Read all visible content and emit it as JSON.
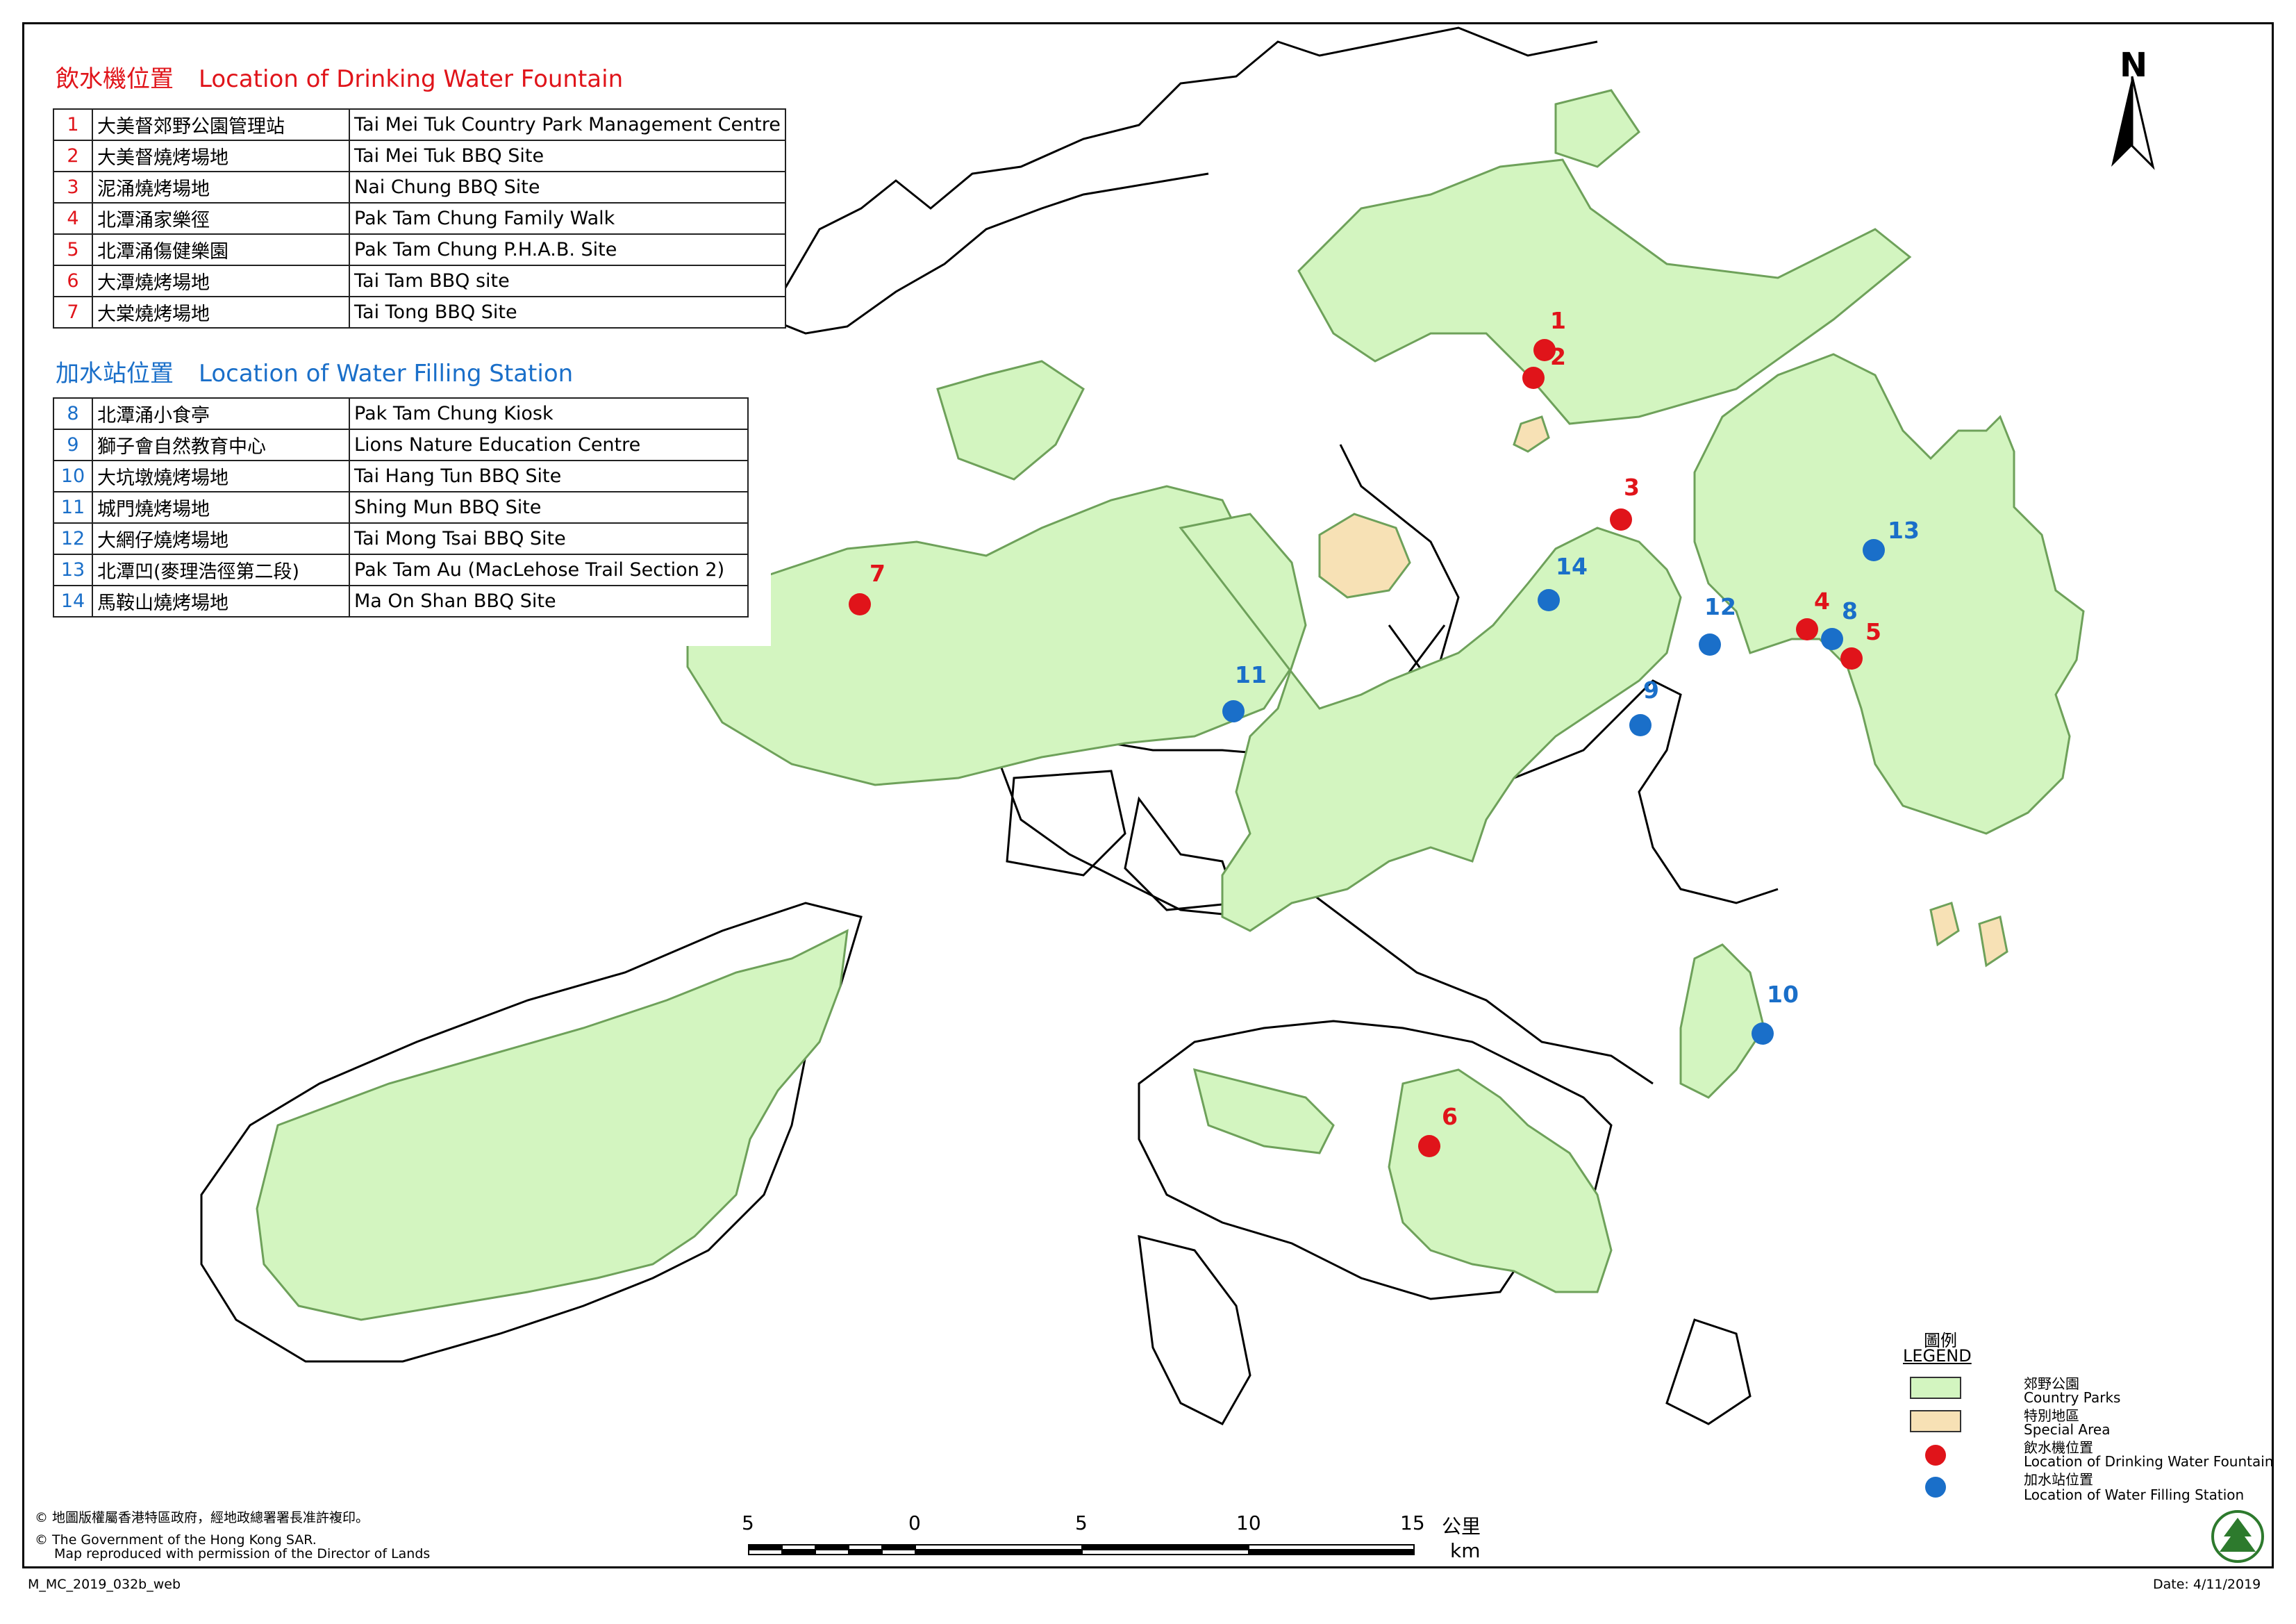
{
  "drinking_title_zh": "飲水機位置",
  "drinking_title_en": "Location of Drinking Water Fountain",
  "drinking_sites": [
    {
      "num": "1",
      "zh": "大美督郊野公園管理站",
      "en": "Tai Mei Tuk Country Park Management Centre"
    },
    {
      "num": "2",
      "zh": "大美督燒烤場地",
      "en": "Tai Mei Tuk BBQ Site"
    },
    {
      "num": "3",
      "zh": "泥涌燒烤場地",
      "en": "Nai Chung BBQ Site"
    },
    {
      "num": "4",
      "zh": "北潭涌家樂徑",
      "en": "Pak Tam Chung Family Walk"
    },
    {
      "num": "5",
      "zh": "北潭涌傷健樂園",
      "en": "Pak Tam Chung P.H.A.B. Site"
    },
    {
      "num": "6",
      "zh": "大潭燒烤場地",
      "en": "Tai Tam BBQ site"
    },
    {
      "num": "7",
      "zh": "大棠燒烤場地",
      "en": "Tai Tong BBQ Site"
    }
  ],
  "filling_title_zh": "加水站位置",
  "filling_title_en": "Location of Water Filling Station",
  "filling_sites": [
    {
      "num": "8",
      "zh": "北潭涌小食亭",
      "en": "Pak Tam Chung Kiosk"
    },
    {
      "num": "9",
      "zh": "獅子會自然教育中心",
      "en": "Lions Nature Education Centre"
    },
    {
      "num": "10",
      "zh": "大坑墩燒烤場地",
      "en": "Tai Hang Tun BBQ Site"
    },
    {
      "num": "11",
      "zh": "城門燒烤場地",
      "en": "Shing Mun BBQ Site"
    },
    {
      "num": "12",
      "zh": "大網仔燒烤場地",
      "en": "Tai Mong Tsai BBQ Site"
    },
    {
      "num": "13",
      "zh": "北潭凹(麥理浩徑第二段)",
      "en": "Pak Tam Au (MacLehose Trail Section 2)"
    },
    {
      "num": "14",
      "zh": "馬鞍山燒烤場地",
      "en": "Ma On Shan BBQ Site"
    }
  ],
  "north_label": "N",
  "legend": {
    "title_zh": "圖例",
    "title_en": "LEGEND",
    "country_parks_zh": "郊野公園",
    "country_parks_en": "Country Parks",
    "special_area_zh": "特別地區",
    "special_area_en": "Special Area",
    "drinking_zh": "飲水機位置",
    "drinking_en": "Location of Drinking Water Fountain",
    "filling_zh": "加水站位置",
    "filling_en": "Location of Water Filling Station"
  },
  "scale": {
    "labels": [
      "5",
      "0",
      "5",
      "10",
      "15"
    ],
    "unit_zh": "公里",
    "unit_en": "km"
  },
  "copyright_zh": "© 地圖版權屬香港特區政府，經地政總署署長准許複印。",
  "copyright_en1": "© The Government of the Hong Kong SAR.",
  "copyright_en2": "Map reproduced with permission of the Director of Lands",
  "map_code": "M_MC_2019_032b_web",
  "date_text": "Date: 4/11/2019",
  "colors": {
    "park_fill": "#d3f5c0",
    "special_fill": "#f7e1b5",
    "drinking": "#e0141a",
    "filling": "#1a6fc9"
  },
  "markers": [
    {
      "num": "1",
      "type": "drinking"
    },
    {
      "num": "2",
      "type": "drinking"
    },
    {
      "num": "3",
      "type": "drinking"
    },
    {
      "num": "4",
      "type": "drinking"
    },
    {
      "num": "5",
      "type": "drinking"
    },
    {
      "num": "6",
      "type": "drinking"
    },
    {
      "num": "7",
      "type": "drinking"
    },
    {
      "num": "8",
      "type": "filling"
    },
    {
      "num": "9",
      "type": "filling"
    },
    {
      "num": "10",
      "type": "filling"
    },
    {
      "num": "11",
      "type": "filling"
    },
    {
      "num": "12",
      "type": "filling"
    },
    {
      "num": "13",
      "type": "filling"
    },
    {
      "num": "14",
      "type": "filling"
    }
  ]
}
